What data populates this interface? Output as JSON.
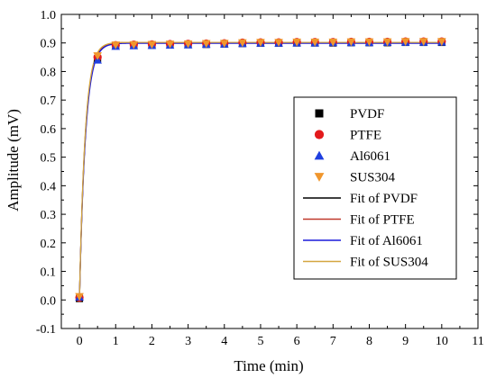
{
  "chart_data": {
    "type": "scatter",
    "xlabel": "Time (min)",
    "ylabel": "Amplitude (mV)",
    "xlim": [
      -0.5,
      11
    ],
    "ylim": [
      -0.1,
      1.0
    ],
    "xticks": [
      0,
      1,
      2,
      3,
      4,
      5,
      6,
      7,
      8,
      9,
      10,
      11
    ],
    "yticks": [
      -0.1,
      0.0,
      0.1,
      0.2,
      0.3,
      0.4,
      0.5,
      0.6,
      0.7,
      0.8,
      0.9,
      1.0
    ],
    "x": [
      0,
      0.5,
      1,
      1.5,
      2,
      2.5,
      3,
      3.5,
      4,
      4.5,
      5,
      5.5,
      6,
      6.5,
      7,
      7.5,
      8,
      8.5,
      9,
      9.5,
      10
    ],
    "legend_position": "right",
    "grid": false,
    "series": [
      {
        "name": "PVDF",
        "marker": "square",
        "color": "#000000",
        "values": [
          0.005,
          0.845,
          0.89,
          0.892,
          0.892,
          0.893,
          0.894,
          0.895,
          0.896,
          0.898,
          0.899,
          0.899,
          0.9,
          0.9,
          0.9,
          0.901,
          0.901,
          0.901,
          0.902,
          0.902,
          0.902
        ]
      },
      {
        "name": "PTFE",
        "marker": "circle",
        "color": "#e31a1c",
        "values": [
          0.008,
          0.85,
          0.892,
          0.894,
          0.895,
          0.896,
          0.897,
          0.898,
          0.899,
          0.901,
          0.902,
          0.902,
          0.903,
          0.903,
          0.903,
          0.904,
          0.904,
          0.904,
          0.905,
          0.905,
          0.905
        ]
      },
      {
        "name": "Al6061",
        "marker": "triangle-up",
        "color": "#1f3fe0",
        "values": [
          0.01,
          0.84,
          0.888,
          0.89,
          0.891,
          0.892,
          0.893,
          0.895,
          0.896,
          0.898,
          0.899,
          0.899,
          0.9,
          0.9,
          0.901,
          0.901,
          0.901,
          0.902,
          0.902,
          0.902,
          0.903
        ]
      },
      {
        "name": "SUS304",
        "marker": "triangle-down",
        "color": "#f0962d",
        "values": [
          0.012,
          0.855,
          0.893,
          0.894,
          0.895,
          0.896,
          0.897,
          0.898,
          0.899,
          0.901,
          0.902,
          0.902,
          0.903,
          0.903,
          0.903,
          0.904,
          0.904,
          0.904,
          0.905,
          0.905,
          0.905
        ]
      }
    ],
    "fits": [
      {
        "name": "Fit of PVDF",
        "color": "#000000",
        "a": 0.9,
        "tau": 0.16
      },
      {
        "name": "Fit of PTFE",
        "color": "#c0392b",
        "a": 0.902,
        "tau": 0.16
      },
      {
        "name": "Fit of Al6061",
        "color": "#1a1adb",
        "a": 0.899,
        "tau": 0.165
      },
      {
        "name": "Fit of SUS304",
        "color": "#d4a640",
        "a": 0.902,
        "tau": 0.155
      }
    ]
  }
}
